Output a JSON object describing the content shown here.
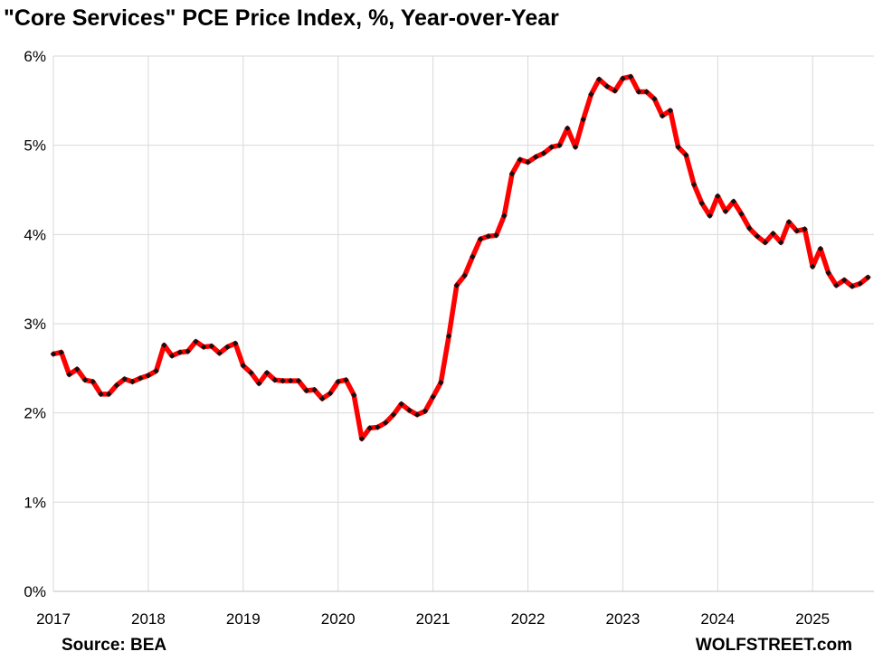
{
  "chart_data": {
    "type": "line",
    "title": "\"Core Services\" PCE Price Index, %, Year-over-Year",
    "source": "Source: BEA",
    "brand": "WOLFSTREET.com",
    "xlabel": "",
    "ylabel": "",
    "ylim": [
      0,
      6
    ],
    "yticks": [
      "0%",
      "1%",
      "2%",
      "3%",
      "4%",
      "5%",
      "6%"
    ],
    "xticks": [
      "2017",
      "2018",
      "2019",
      "2020",
      "2021",
      "2022",
      "2023",
      "2024",
      "2025"
    ],
    "x_start": "2017-01",
    "grid": true,
    "colors": {
      "line": "#ff0000",
      "marker": "#111111",
      "grid": "#d9d9d9"
    },
    "series": [
      {
        "values": [
          2.66,
          2.68,
          2.43,
          2.49,
          2.37,
          2.35,
          2.21,
          2.21,
          2.31,
          2.38,
          2.35,
          2.39,
          2.42,
          2.47,
          2.76,
          2.64,
          2.68,
          2.69,
          2.8,
          2.74,
          2.75,
          2.67,
          2.74,
          2.78,
          2.53,
          2.45,
          2.33,
          2.45,
          2.37,
          2.36,
          2.36,
          2.36,
          2.25,
          2.26,
          2.16,
          2.22,
          2.35,
          2.37,
          2.2,
          1.71,
          1.83,
          1.84,
          1.89,
          1.98,
          2.1,
          2.03,
          1.98,
          2.02,
          2.18,
          2.34,
          2.86,
          3.43,
          3.54,
          3.75,
          3.95,
          3.98,
          3.99,
          4.21,
          4.68,
          4.84,
          4.81,
          4.87,
          4.91,
          4.98,
          5.0,
          5.19,
          4.98,
          5.29,
          5.57,
          5.74,
          5.66,
          5.61,
          5.75,
          5.77,
          5.6,
          5.6,
          5.52,
          5.33,
          5.39,
          4.98,
          4.89,
          4.56,
          4.35,
          4.21,
          4.43,
          4.26,
          4.37,
          4.23,
          4.07,
          3.98,
          3.91,
          4.01,
          3.91,
          4.14,
          4.04,
          4.06,
          3.64,
          3.84,
          3.57,
          3.43,
          3.49,
          3.42,
          3.45,
          3.52
        ]
      }
    ]
  }
}
